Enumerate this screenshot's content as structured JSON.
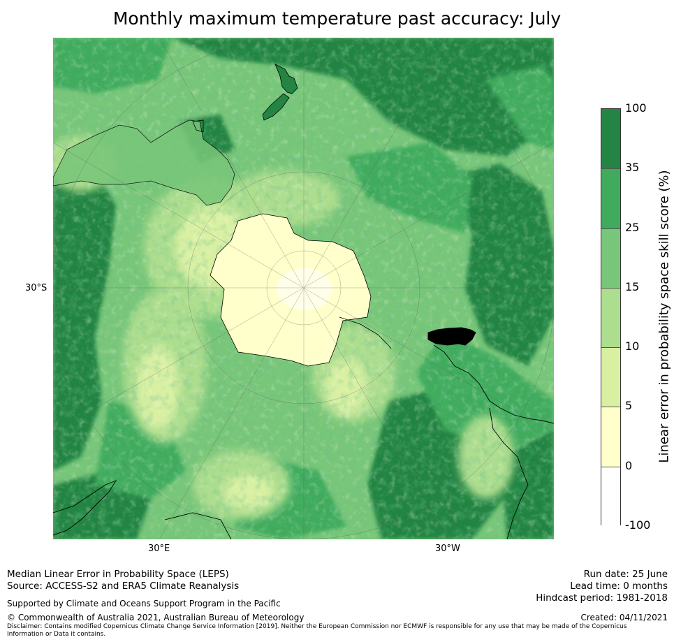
{
  "title": "Monthly maximum temperature past accuracy: July",
  "map": {
    "projection": "south-polar-stereographic",
    "lat_labels": [
      "30°S"
    ],
    "lon_labels": [
      "30°E",
      "30°W"
    ],
    "region": "Southern Hemisphere",
    "features": [
      "Antarctica",
      "Australia",
      "New Zealand",
      "South America",
      "Southern Africa",
      "Madagascar"
    ]
  },
  "colorbar": {
    "label": "Linear error in probability space skill score (%)",
    "ticks": [
      "100",
      "35",
      "25",
      "15",
      "10",
      "5",
      "0",
      "-100"
    ],
    "bins": [
      {
        "from": -100,
        "to": 0,
        "color": "#ffffff"
      },
      {
        "from": 0,
        "to": 5,
        "color": "#ffffcc"
      },
      {
        "from": 5,
        "to": 10,
        "color": "#d9f0a3"
      },
      {
        "from": 10,
        "to": 15,
        "color": "#addd8e"
      },
      {
        "from": 15,
        "to": 25,
        "color": "#78c679"
      },
      {
        "from": 25,
        "to": 35,
        "color": "#41ab5d"
      },
      {
        "from": 35,
        "to": 100,
        "color": "#238443"
      }
    ]
  },
  "footer": {
    "left": {
      "line1": "Median Linear Error in Probability Space (LEPS)",
      "line2": "Source: ACCESS-S2 and ERA5 Climate Reanalysis",
      "supported": "Supported by Climate and Oceans Support Program in the Pacific",
      "copyright": "© Commonwealth of Australia 2021, Australian Bureau of Meteorology",
      "disclaimer1": "Disclaimer: Contains modified Copernicus Climate Change Service Information [2019]. Neither the European Commission nor ECMWF is responsible for any use that may be made of the Copernicus",
      "disclaimer2": "Information or Data it contains."
    },
    "right": {
      "run_date": "Run date: 25 June",
      "lead_time": "Lead time: 0 months",
      "hindcast": "Hindcast period: 1981-2018",
      "created": "Created: 04/11/2021"
    }
  }
}
